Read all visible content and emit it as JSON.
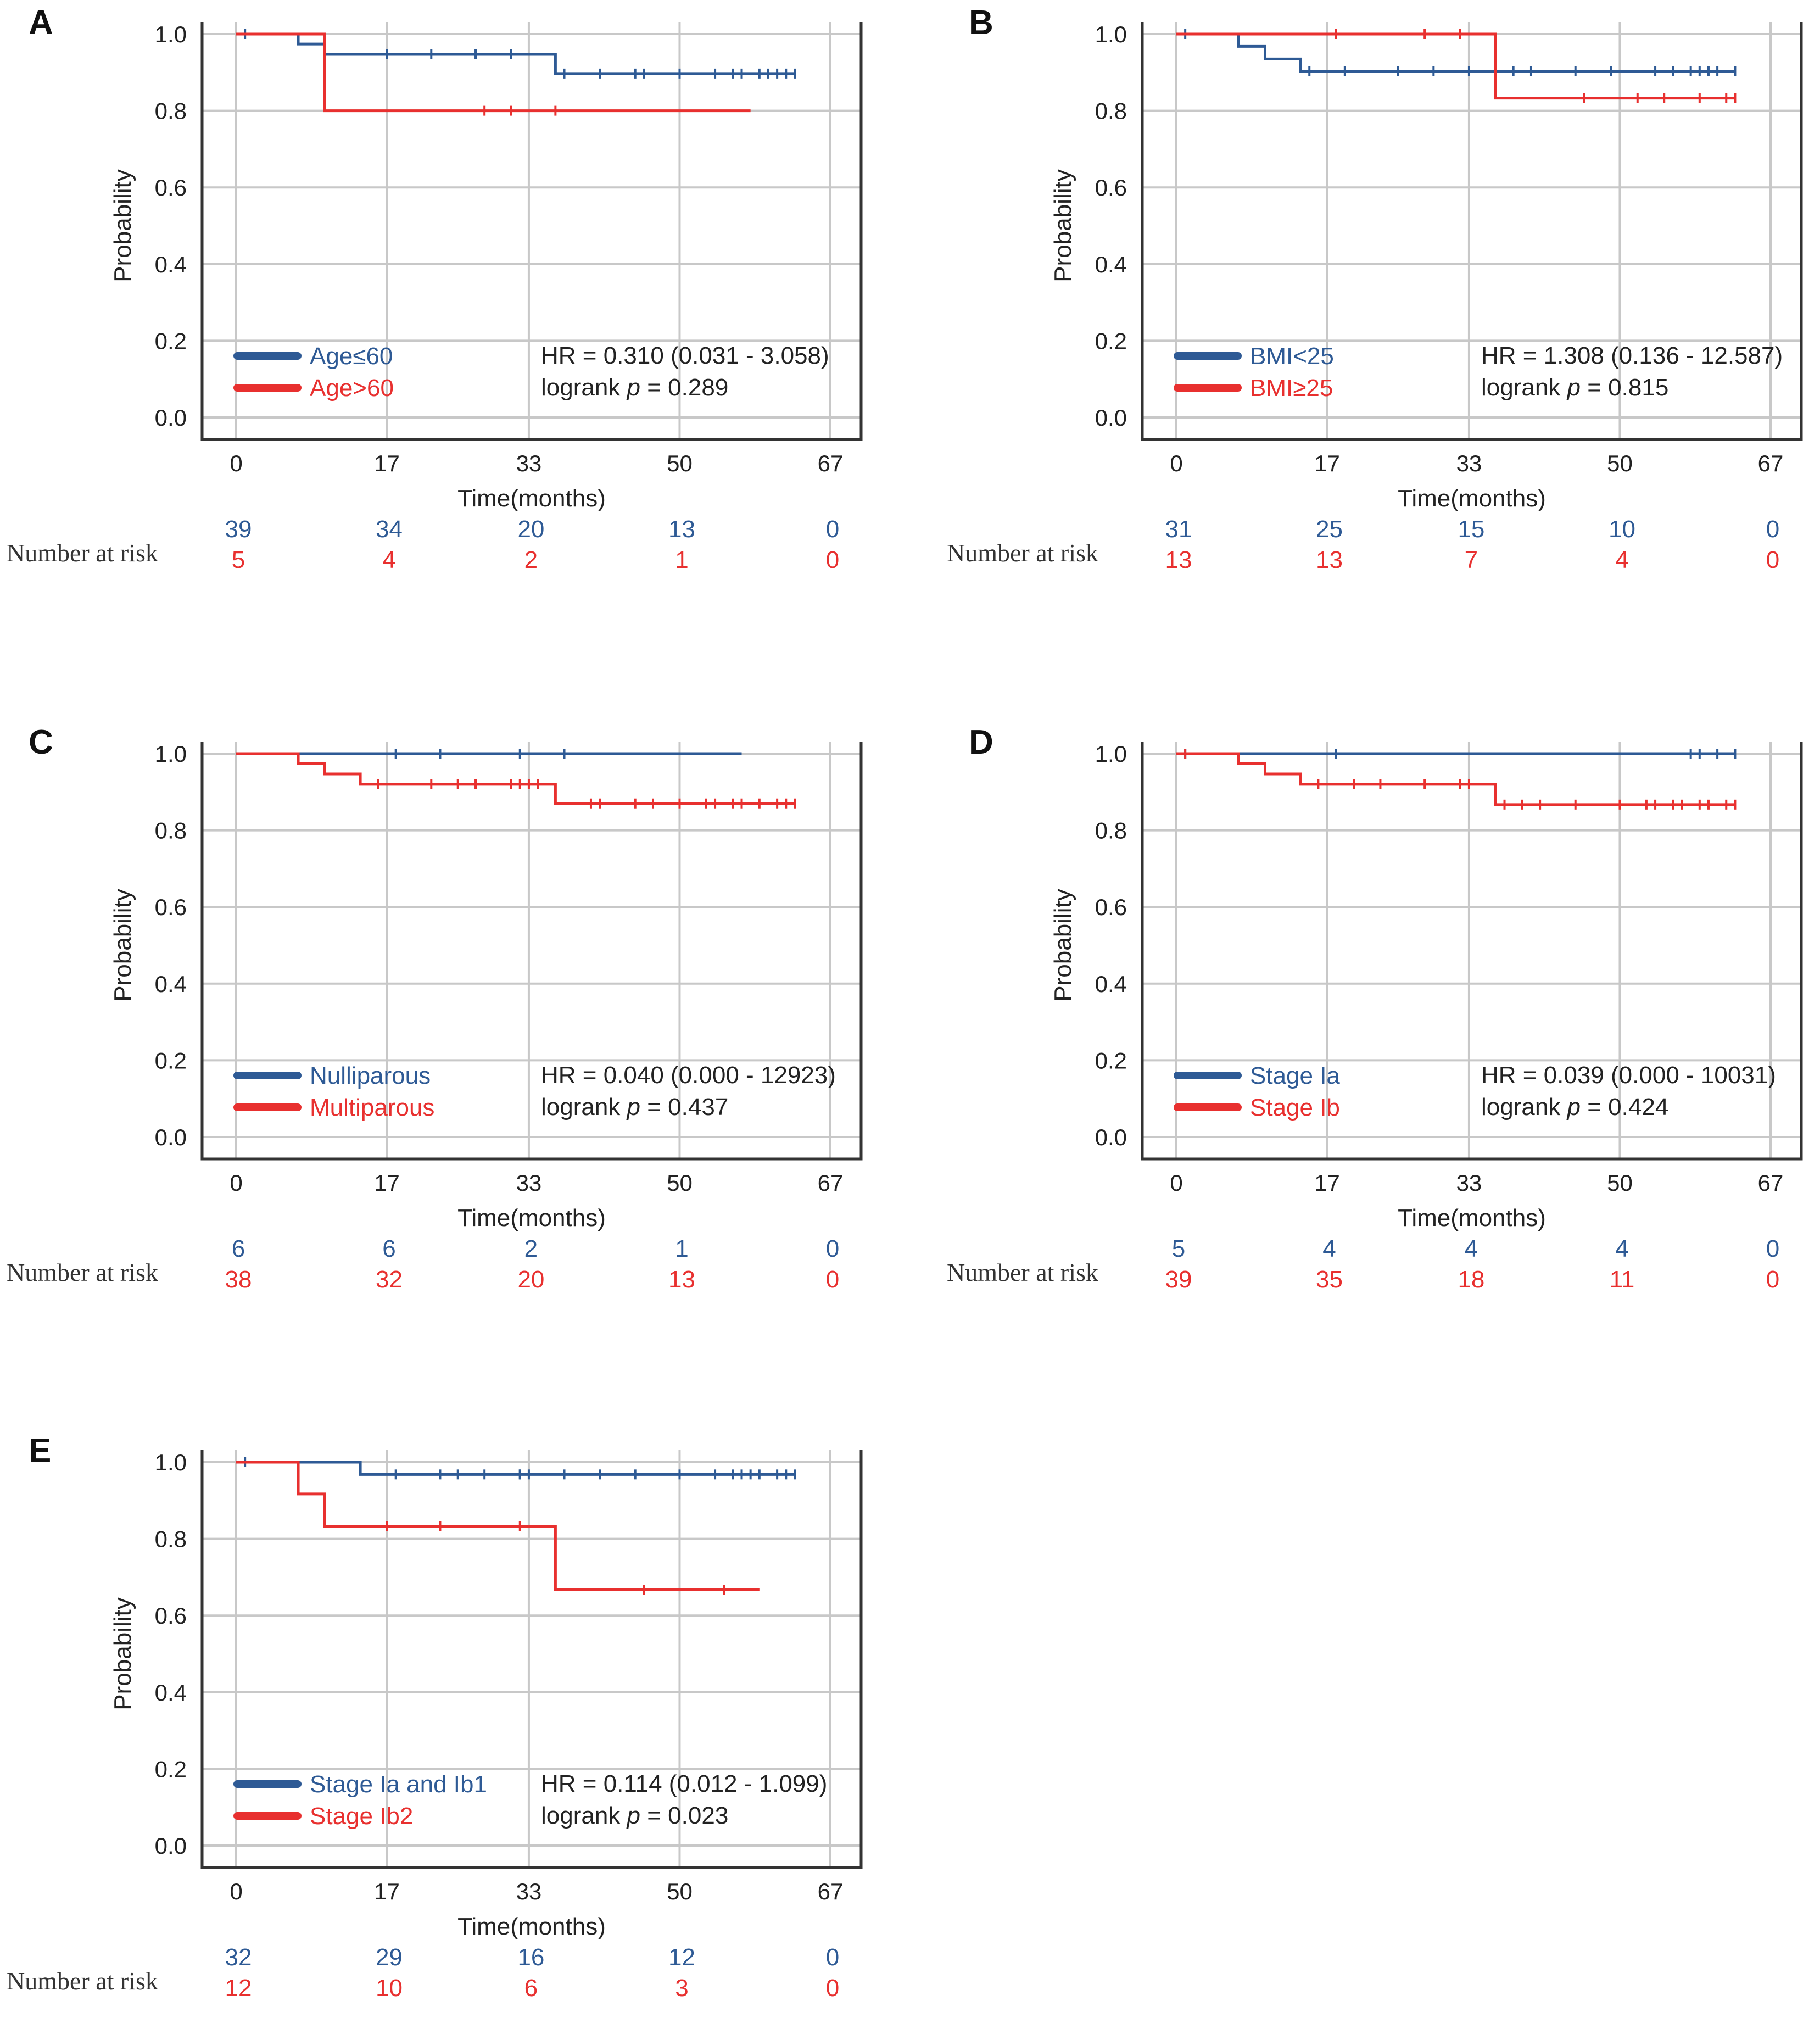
{
  "colors": {
    "group1": "#2e5a95",
    "group2": "#e8302f",
    "grid": "#c8c8c8",
    "axis": "#333333",
    "text": "#222222"
  },
  "chart_data": [
    {
      "panel": "A",
      "type": "line",
      "xlabel": "Time(months)",
      "ylabel": "Probability",
      "xticks": [
        "0",
        "17",
        "33",
        "50",
        "67"
      ],
      "yticks": [
        "0.0",
        "0.2",
        "0.4",
        "0.6",
        "0.8",
        "1.0"
      ],
      "xlim": [
        0,
        67
      ],
      "ylim": [
        0,
        1
      ],
      "series": [
        {
          "name": "Age≤60",
          "steps": [
            [
              0,
              1.0
            ],
            [
              7,
              0.974
            ],
            [
              10,
              0.947
            ],
            [
              36,
              0.897
            ]
          ],
          "end": 63,
          "censors": [
            1,
            17,
            22,
            27,
            31,
            31,
            31,
            37,
            41,
            45,
            46,
            50,
            54,
            56,
            57,
            59,
            60,
            61,
            62,
            63
          ]
        },
        {
          "name": "Age>60",
          "steps": [
            [
              0,
              1.0
            ],
            [
              10,
              0.8
            ]
          ],
          "end": 58,
          "censors": [
            28,
            31,
            36
          ]
        }
      ],
      "stats": {
        "hr": "HR = 0.310 (0.031 - 3.058)",
        "logrank_prefix": "logrank ",
        "p_symbol": "p",
        "p_value": " = 0.289"
      },
      "risk": {
        "label": "Number at risk",
        "rows": [
          [
            "39",
            "34",
            "20",
            "13",
            "0"
          ],
          [
            "5",
            "4",
            "2",
            "1",
            "0"
          ]
        ]
      }
    },
    {
      "panel": "B",
      "type": "line",
      "xlabel": "Time(months)",
      "ylabel": "Probability",
      "xticks": [
        "0",
        "17",
        "33",
        "50",
        "67"
      ],
      "yticks": [
        "0.0",
        "0.2",
        "0.4",
        "0.6",
        "0.8",
        "1.0"
      ],
      "xlim": [
        0,
        67
      ],
      "ylim": [
        0,
        1
      ],
      "series": [
        {
          "name": "BMI<25",
          "steps": [
            [
              0,
              1.0
            ],
            [
              7,
              0.968
            ],
            [
              10,
              0.935
            ],
            [
              14,
              0.903
            ]
          ],
          "end": 63,
          "censors": [
            1,
            15,
            19,
            25,
            29,
            33,
            38,
            40,
            45,
            49,
            54,
            56,
            58,
            59,
            60,
            61,
            63
          ]
        },
        {
          "name": "BMI≥25",
          "steps": [
            [
              0,
              1.0
            ],
            [
              36,
              0.833
            ]
          ],
          "end": 63,
          "censors": [
            18,
            28,
            32,
            46,
            52,
            55,
            59,
            62,
            63
          ]
        }
      ],
      "stats": {
        "hr": "HR = 1.308 (0.136 - 12.587)",
        "logrank_prefix": "logrank ",
        "p_symbol": "p",
        "p_value": " = 0.815"
      },
      "risk": {
        "label": "Number at risk",
        "rows": [
          [
            "31",
            "25",
            "15",
            "10",
            "0"
          ],
          [
            "13",
            "13",
            "7",
            "4",
            "0"
          ]
        ]
      }
    },
    {
      "panel": "C",
      "type": "line",
      "xlabel": "Time(months)",
      "ylabel": "Probability",
      "xticks": [
        "0",
        "17",
        "33",
        "50",
        "67"
      ],
      "yticks": [
        "0.0",
        "0.2",
        "0.4",
        "0.6",
        "0.8",
        "1.0"
      ],
      "xlim": [
        0,
        67
      ],
      "ylim": [
        0,
        1
      ],
      "series": [
        {
          "name": "Nulliparous",
          "steps": [
            [
              0,
              1.0
            ]
          ],
          "end": 57,
          "censors": [
            18,
            23,
            32,
            37
          ]
        },
        {
          "name": "Multiparous",
          "steps": [
            [
              0,
              1.0
            ],
            [
              7,
              0.974
            ],
            [
              10,
              0.947
            ],
            [
              14,
              0.92
            ],
            [
              36,
              0.87
            ]
          ],
          "end": 63,
          "censors": [
            16,
            22,
            25,
            27,
            31,
            32,
            33,
            34,
            40,
            41,
            45,
            47,
            50,
            53,
            54,
            56,
            57,
            59,
            61,
            62,
            63
          ]
        }
      ],
      "stats": {
        "hr": "HR = 0.040 (0.000 - 12923)",
        "logrank_prefix": "logrank ",
        "p_symbol": "p",
        "p_value": " = 0.437"
      },
      "risk": {
        "label": "Number at risk",
        "rows": [
          [
            "6",
            "6",
            "2",
            "1",
            "0"
          ],
          [
            "38",
            "32",
            "20",
            "13",
            "0"
          ]
        ]
      }
    },
    {
      "panel": "D",
      "type": "line",
      "xlabel": "Time(months)",
      "ylabel": "Probability",
      "xticks": [
        "0",
        "17",
        "33",
        "50",
        "67"
      ],
      "yticks": [
        "0.0",
        "0.2",
        "0.4",
        "0.6",
        "0.8",
        "1.0"
      ],
      "xlim": [
        0,
        67
      ],
      "ylim": [
        0,
        1
      ],
      "series": [
        {
          "name": "Stage Ia",
          "steps": [
            [
              0,
              1.0
            ]
          ],
          "end": 63,
          "censors": [
            1,
            18,
            58,
            59,
            61,
            63
          ]
        },
        {
          "name": "Stage Ib",
          "steps": [
            [
              0,
              1.0
            ],
            [
              7,
              0.974
            ],
            [
              10,
              0.947
            ],
            [
              14,
              0.92
            ],
            [
              36,
              0.867
            ]
          ],
          "end": 63,
          "censors": [
            1,
            16,
            20,
            23,
            28,
            32,
            33,
            37,
            39,
            41,
            45,
            50,
            53,
            54,
            56,
            57,
            59,
            60,
            62,
            63
          ]
        }
      ],
      "stats": {
        "hr": "HR = 0.039 (0.000 - 10031)",
        "logrank_prefix": "logrank ",
        "p_symbol": "p",
        "p_value": " = 0.424"
      },
      "risk": {
        "label": "Number at risk",
        "rows": [
          [
            "5",
            "4",
            "4",
            "4",
            "0"
          ],
          [
            "39",
            "35",
            "18",
            "11",
            "0"
          ]
        ]
      }
    },
    {
      "panel": "E",
      "type": "line",
      "xlabel": "Time(months)",
      "ylabel": "Probability",
      "xticks": [
        "0",
        "17",
        "33",
        "50",
        "67"
      ],
      "yticks": [
        "0.0",
        "0.2",
        "0.4",
        "0.6",
        "0.8",
        "1.0"
      ],
      "xlim": [
        0,
        67
      ],
      "ylim": [
        0,
        1
      ],
      "series": [
        {
          "name": "Stage Ia and Ib1",
          "steps": [
            [
              0,
              1.0
            ],
            [
              14,
              0.968
            ]
          ],
          "end": 63,
          "censors": [
            1,
            18,
            23,
            25,
            28,
            32,
            32,
            33,
            37,
            41,
            45,
            50,
            54,
            56,
            57,
            58,
            59,
            61,
            62,
            63
          ]
        },
        {
          "name": "Stage Ib2",
          "steps": [
            [
              0,
              1.0
            ],
            [
              7,
              0.917
            ],
            [
              10,
              0.833
            ],
            [
              36,
              0.667
            ]
          ],
          "end": 59,
          "censors": [
            17,
            23,
            32,
            46,
            55
          ]
        }
      ],
      "stats": {
        "hr": "HR = 0.114 (0.012 - 1.099)",
        "logrank_prefix": "logrank ",
        "p_symbol": "p",
        "p_value": " = 0.023"
      },
      "risk": {
        "label": "Number at risk",
        "rows": [
          [
            "32",
            "29",
            "16",
            "12",
            "0"
          ],
          [
            "12",
            "10",
            "6",
            "3",
            "0"
          ]
        ]
      }
    }
  ]
}
